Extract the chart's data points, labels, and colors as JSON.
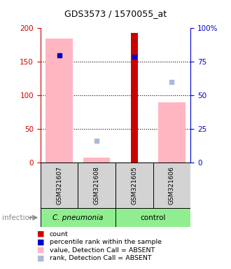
{
  "title": "GDS3573 / 1570055_at",
  "samples": [
    "GSM321607",
    "GSM321608",
    "GSM321605",
    "GSM321606"
  ],
  "bar_values": [
    185,
    8,
    193,
    90
  ],
  "bar_colors_absent": [
    "#ffb6c1",
    "#ffb6c1",
    null,
    "#ffb6c1"
  ],
  "bar_colors_count": [
    null,
    null,
    "#cc0000",
    null
  ],
  "rank_dots_y": [
    160,
    null,
    158,
    null
  ],
  "rank_dot_color": "#0000cd",
  "absent_rank_dots_y": [
    null,
    33,
    null,
    120
  ],
  "absent_rank_dot_color": "#b0b8d8",
  "ylim_left": [
    0,
    200
  ],
  "ylim_right": [
    0,
    100
  ],
  "yticks_left": [
    0,
    50,
    100,
    150,
    200
  ],
  "yticks_right": [
    0,
    25,
    50,
    75,
    100
  ],
  "ytick_labels_right": [
    "0",
    "25",
    "50",
    "75",
    "100%"
  ],
  "left_axis_color": "#cc0000",
  "right_axis_color": "#0000cc",
  "group_label": "infection",
  "group_spans": [
    {
      "label": "C. pneumonia",
      "start": 0,
      "end": 1,
      "color": "#90ee90",
      "italic": true
    },
    {
      "label": "control",
      "start": 2,
      "end": 3,
      "color": "#90ee90",
      "italic": false
    }
  ],
  "legend_items": [
    {
      "color": "#cc0000",
      "label": "count"
    },
    {
      "color": "#0000cd",
      "label": "percentile rank within the sample"
    },
    {
      "color": "#ffb6c1",
      "label": "value, Detection Call = ABSENT"
    },
    {
      "color": "#b0b8d8",
      "label": "rank, Detection Call = ABSENT"
    }
  ]
}
